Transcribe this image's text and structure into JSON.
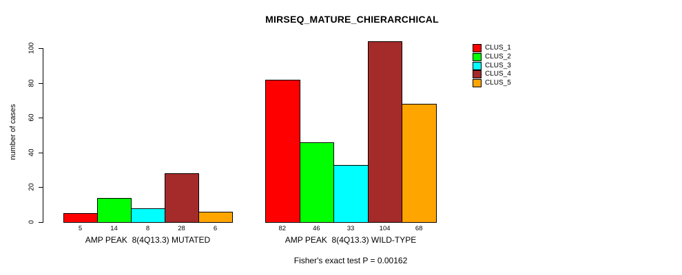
{
  "title": "MIRSEQ_MATURE_CHIERARCHICAL",
  "subtitle": "Fisher's exact test P = 0.00162",
  "y_axis": {
    "label": "number of cases",
    "ticks": [
      0,
      20,
      40,
      60,
      80,
      100
    ]
  },
  "legend": {
    "position": "top-right",
    "items": [
      {
        "label": "CLUS_1",
        "color": "#FF0000"
      },
      {
        "label": "CLUS_2",
        "color": "#00FF00"
      },
      {
        "label": "CLUS_3",
        "color": "#00FFFF"
      },
      {
        "label": "CLUS_4",
        "color": "#A52A2A"
      },
      {
        "label": "CLUS_5",
        "color": "#FFA500"
      }
    ]
  },
  "chart_data": {
    "type": "bar",
    "title": "MIRSEQ_MATURE_CHIERARCHICAL",
    "xlabel": "",
    "ylabel": "number of cases",
    "ylim": [
      0,
      104
    ],
    "grid": false,
    "legend_position": "top-right",
    "series": [
      "CLUS_1",
      "CLUS_2",
      "CLUS_3",
      "CLUS_4",
      "CLUS_5"
    ],
    "colors": [
      "#FF0000",
      "#00FF00",
      "#00FFFF",
      "#A52A2A",
      "#FFA500"
    ],
    "groups": [
      {
        "label": "AMP PEAK  8(4Q13.3) MUTATED",
        "values": [
          5,
          14,
          8,
          28,
          6
        ]
      },
      {
        "label": "AMP PEAK  8(4Q13.3) WILD-TYPE",
        "values": [
          82,
          46,
          33,
          104,
          68
        ]
      }
    ],
    "annotation": "Fisher's exact test P = 0.00162"
  }
}
